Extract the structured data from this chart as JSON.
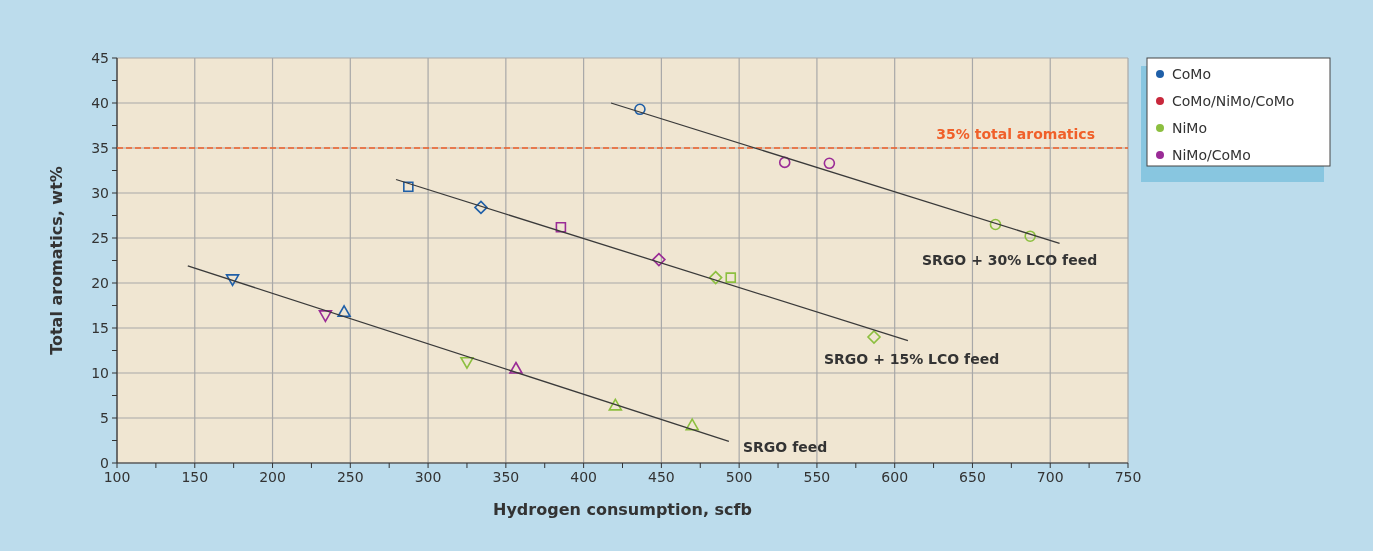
{
  "chart_data": {
    "type": "scatter",
    "xlabel": "Hydrogen consumption, scfb",
    "ylabel": "Total aromatics, wt%",
    "xlim": [
      100,
      750
    ],
    "ylim": [
      0,
      45
    ],
    "xticks": [
      100,
      {
        "value": 125,
        "label": null
      },
      150,
      {
        "value": 175,
        "label": null
      },
      200,
      {
        "value": 225,
        "label": null
      },
      250,
      {
        "value": 275,
        "label": null
      },
      300,
      {
        "value": 325,
        "label": null
      },
      350,
      {
        "value": 375,
        "label": null
      },
      400,
      {
        "value": 425,
        "label": null
      },
      450,
      {
        "value": 475,
        "label": null
      },
      500,
      {
        "value": 525,
        "label": null
      },
      550,
      {
        "value": 575,
        "label": null
      },
      600,
      {
        "value": 625,
        "label": null
      },
      650,
      {
        "value": 675,
        "label": null
      },
      700,
      {
        "value": 725,
        "label": null
      },
      750
    ],
    "yticks": [
      0,
      {
        "value": 2.5,
        "label": null
      },
      5,
      {
        "value": 7.5,
        "label": null
      },
      10,
      {
        "value": 12.5,
        "label": null
      },
      15,
      {
        "value": 17.5,
        "label": null
      },
      20,
      {
        "value": 22.5,
        "label": null
      },
      25,
      {
        "value": 27.5,
        "label": null
      },
      30,
      {
        "value": 32.5,
        "label": null
      },
      35,
      {
        "value": 37.5,
        "label": null
      },
      40,
      {
        "value": 42.5,
        "label": null
      },
      45
    ],
    "grid": true,
    "legend": "top right",
    "ref_lines": [
      {
        "axis": "y",
        "value": 35,
        "label": "35% total aromatics",
        "color": "#f0602a",
        "line_style": "dashed"
      }
    ],
    "annotations": [
      "SRGO + 30% LCO feed",
      "SRGO + 15% LCO feed",
      "SRGO feed"
    ],
    "series": [
      {
        "name": "CoMo",
        "color": "#1f5fa8",
        "marker": "circle",
        "x": [
          436.2
        ],
        "values": [
          39.3
        ]
      },
      {
        "name": "CoMo/NiMo/CoMo",
        "color": "#c8283c"
      },
      {
        "name": "NiMo",
        "color": "#8cbf3f",
        "marker": "circle",
        "x": [
          664.8,
          687.1
        ],
        "values": [
          26.5,
          25.2
        ]
      },
      {
        "name": "NiMo/CoMo",
        "color": "#9a2b96",
        "marker": "circle",
        "x": [
          529.3,
          558
        ],
        "values": [
          33.4,
          33.3
        ]
      },
      {
        "color": "#1f5fa8",
        "marker": "square",
        "x": [
          287.3
        ],
        "values": [
          30.7
        ]
      },
      {
        "color": "#1f5fa8",
        "marker": "diamond",
        "x": [
          334
        ],
        "values": [
          28.4
        ]
      },
      {
        "color": "#1f5fa8",
        "marker": "triangle",
        "x": [
          246
        ],
        "values": [
          16.8
        ]
      },
      {
        "color": "#1f5fa8",
        "marker": "triangle-down",
        "x": [
          174.3
        ],
        "values": [
          20.4
        ]
      },
      {
        "color": "#9a2b96",
        "marker": "square",
        "x": [
          385.4
        ],
        "values": [
          26.2
        ]
      },
      {
        "color": "#9a2b96",
        "marker": "diamond",
        "x": [
          448.4
        ],
        "values": [
          22.6
        ]
      },
      {
        "color": "#9a2b96",
        "marker": "triangle",
        "x": [
          356.5
        ],
        "values": [
          10.5
        ]
      },
      {
        "color": "#9a2b96",
        "marker": "triangle-down",
        "x": [
          234
        ],
        "values": [
          16.4
        ]
      },
      {
        "color": "#8cbf3f",
        "marker": "square",
        "x": [
          494.6
        ],
        "values": [
          20.6
        ]
      },
      {
        "color": "#8cbf3f",
        "marker": "diamond",
        "x": [
          484.9,
          586.7
        ],
        "values": [
          20.6,
          14.0
        ]
      },
      {
        "color": "#8cbf3f",
        "marker": "triangle",
        "x": [
          420.4,
          469.8
        ],
        "values": [
          6.4,
          4.2
        ]
      },
      {
        "color": "#8cbf3f",
        "marker": "triangle-down",
        "x": [
          325
        ],
        "values": [
          11.2
        ]
      },
      {
        "type": "line",
        "color": "#3a3a3a",
        "marker": "none",
        "x": [
          145.5,
          493.4
        ],
        "values": [
          21.9,
          2.4
        ]
      },
      {
        "type": "line",
        "color": "#3a3a3a",
        "marker": "none",
        "x": [
          279.4,
          608.5
        ],
        "values": [
          31.5,
          13.6
        ]
      },
      {
        "type": "line",
        "color": "#3a3a3a",
        "marker": "none",
        "x": [
          417.6,
          706
        ],
        "values": [
          40.0,
          24.4
        ]
      }
    ]
  }
}
